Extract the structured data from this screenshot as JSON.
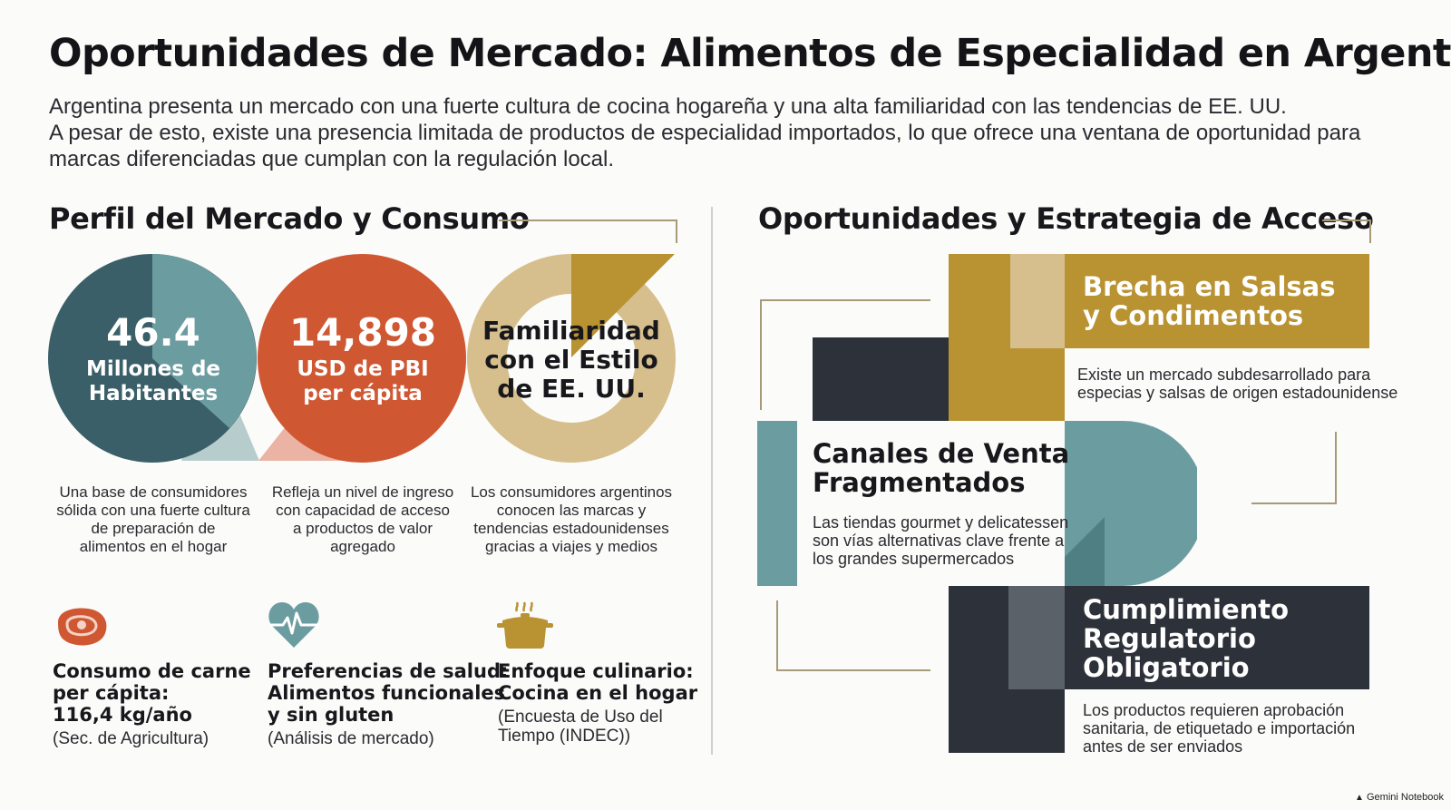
{
  "header": {
    "title": "Oportunidades de Mercado: Alimentos de Especialidad en Argentina",
    "intro_lines": [
      "Argentina presenta un mercado con una fuerte cultura de cocina hogareña y una alta familiaridad con las tendencias de EE. UU.",
      "A pesar de esto, existe una presencia limitada de productos de especialidad importados, lo que ofrece una ventana de oportunidad para",
      "marcas diferenciadas que cumplan con la regulación local."
    ]
  },
  "profile": {
    "title": "Perfil del Mercado y Consumo",
    "stats": [
      {
        "value": "46.4",
        "label_lines": [
          "Millones de",
          "Habitantes"
        ],
        "desc_lines": [
          "Una base de consumidores",
          "sólida con una fuerte cultura",
          "de preparación de",
          "alimentos en el hogar"
        ]
      },
      {
        "value": "14,898",
        "label_lines": [
          "USD de PBI",
          "per cápita"
        ],
        "desc_lines": [
          "Refleja un nivel de ingreso",
          "con capacidad de acceso",
          "a productos de valor",
          "agregado"
        ]
      },
      {
        "label_lines": [
          "Familiaridad",
          "con el Estilo",
          "de EE. UU."
        ],
        "desc_lines": [
          "Los consumidores argentinos",
          "conocen las marcas y",
          "tendencias estadounidenses",
          "gracias a viajes y medios"
        ]
      }
    ],
    "facts": [
      {
        "icon": "steak-icon",
        "title_lines": [
          "Consumo de carne",
          "per cápita:",
          "116,4 kg/año"
        ],
        "source": "(Sec. de Agricultura)"
      },
      {
        "icon": "heart-pulse-icon",
        "title_lines": [
          "Preferencias de salud:",
          "Alimentos funcionales",
          "y sin gluten"
        ],
        "source": "(Análisis de mercado)"
      },
      {
        "icon": "cooking-pot-icon",
        "title_lines": [
          "Enfoque culinario:",
          "Cocina en el hogar"
        ],
        "source_lines": [
          "(Encuesta de Uso del",
          "Tiempo (INDEC))"
        ]
      }
    ]
  },
  "strategy": {
    "title": "Oportunidades y Estrategia de Acceso",
    "items": [
      {
        "title_lines": [
          "Brecha en Salsas",
          "y Condimentos"
        ],
        "desc_lines": [
          "Existe un mercado subdesarrollado para",
          "especias y salsas de origen estadounidense"
        ]
      },
      {
        "title_lines": [
          "Canales de Venta",
          "Fragmentados"
        ],
        "desc_lines": [
          "Las tiendas gourmet y delicatessen",
          "son vías alternativas clave frente a",
          "los grandes supermercados"
        ]
      },
      {
        "title_lines": [
          "Cumplimiento",
          "Regulatorio",
          "Obligatorio"
        ],
        "desc_lines": [
          "Los productos requieren aprobación",
          "sanitaria, de etiquetado e importación",
          "antes de ser enviados"
        ]
      }
    ]
  },
  "footer": {
    "brand": "Gemini Notebook"
  },
  "colors": {
    "teal_dark": "#3a5f68",
    "teal": "#6b9da0",
    "orange": "#cf5833",
    "gold": "#b99232",
    "tan": "#d6bf8c",
    "navy": "#2d3139"
  }
}
